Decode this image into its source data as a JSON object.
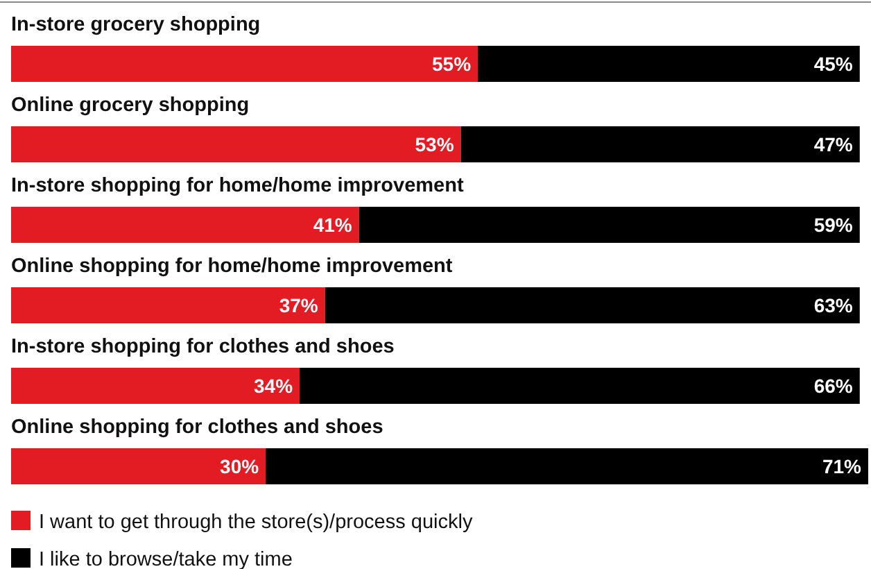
{
  "chart_data": {
    "type": "bar",
    "orientation": "horizontal",
    "stacked": true,
    "legend": "bottom",
    "categories": [
      "In-store grocery shopping",
      "Online grocery shopping",
      "In-store shopping for home/home improvement",
      "Online shopping for home/home improvement",
      "In-store shopping for clothes and shoes",
      "Online shopping for clothes and shoes"
    ],
    "series": [
      {
        "name": "I want to get through the store(s)/process quickly",
        "color": "#e31b23",
        "values": [
          55,
          53,
          41,
          37,
          34,
          30
        ],
        "value_labels": [
          "55%",
          "53%",
          "41%",
          "37%",
          "34%",
          "30%"
        ]
      },
      {
        "name": "I like to browse/take my time",
        "color": "#000000",
        "values": [
          45,
          47,
          59,
          63,
          66,
          71
        ],
        "value_labels": [
          "45%",
          "47%",
          "59%",
          "63%",
          "66%",
          "71%"
        ]
      }
    ]
  }
}
